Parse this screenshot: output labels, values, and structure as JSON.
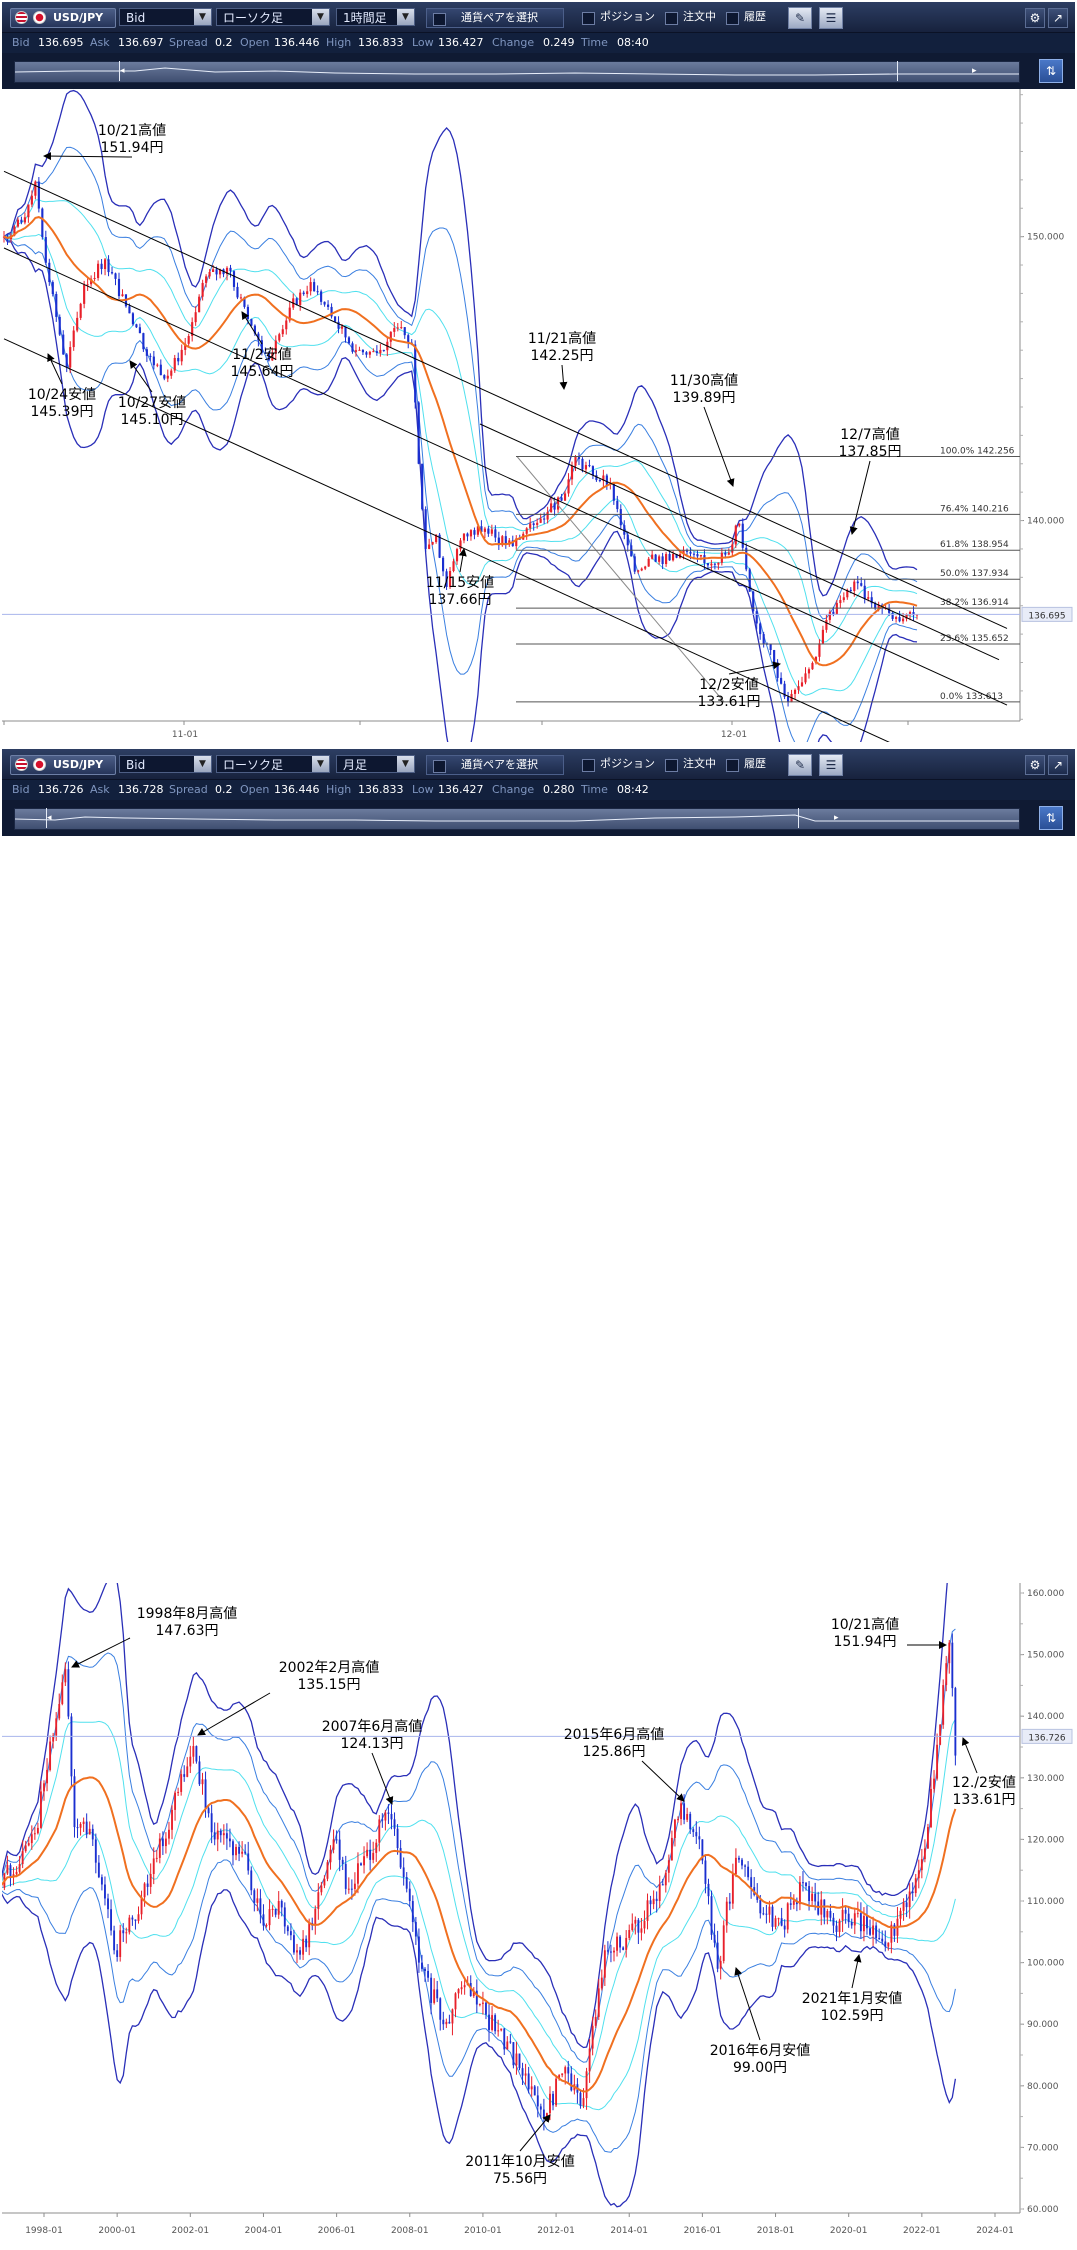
{
  "top": {
    "toolbar": {
      "pair": "USD/JPY",
      "side": "Bid",
      "chart_type": "ローソク足",
      "timeframe": "1時間足",
      "select_pair": "通貨ペアを選択",
      "positions": "ポジション",
      "orders": "注文中",
      "history": "履歴"
    },
    "quote": {
      "bid_label": "Bid",
      "bid": "136.695",
      "ask_label": "Ask",
      "ask": "136.697",
      "spread_label": "Spread",
      "spread": "0.2",
      "open_label": "Open",
      "open": "136.446",
      "high_label": "High",
      "high": "136.833",
      "low_label": "Low",
      "low": "136.427",
      "change_label": "Change",
      "change": "0.249",
      "time_label": "Time",
      "time": "08:40"
    }
  },
  "bottom": {
    "toolbar": {
      "pair": "USD/JPY",
      "side": "Bid",
      "chart_type": "ローソク足",
      "timeframe": "月足",
      "select_pair": "通貨ペアを選択",
      "positions": "ポジション",
      "orders": "注文中",
      "history": "履歴"
    },
    "quote": {
      "bid_label": "Bid",
      "bid": "136.726",
      "ask_label": "Ask",
      "ask": "136.728",
      "spread_label": "Spread",
      "spread": "0.2",
      "open_label": "Open",
      "open": "136.446",
      "high_label": "High",
      "high": "136.833",
      "low_label": "Low",
      "low": "136.427",
      "change_label": "Change",
      "change": "0.280",
      "time_label": "Time",
      "time": "08:42"
    }
  },
  "colors": {
    "candle_up": "#e8202a",
    "candle_down": "#1a2fd0",
    "ma": "#f07020",
    "band_outer": "#2a2fb8",
    "band_mid": "#3a7fe0",
    "band_inner": "#50e0ee",
    "current_line": "#a8b4ec",
    "fib": "#555555",
    "channel": "#000000",
    "axis_text": "#555555"
  },
  "chart_data": [
    {
      "type": "candlestick",
      "timeframe": "1時間足",
      "y_ticks": [
        150,
        140
      ],
      "y_tick_labels": [
        "150.000",
        "140.000"
      ],
      "x_tick_labels": [
        "11-01",
        "12-01"
      ],
      "current_price": 136.695,
      "current_price_label": "136.695",
      "ylim": [
        132.2,
        155.2
      ],
      "price_path": [
        [
          0,
          150.0
        ],
        [
          5,
          150.5
        ],
        [
          9,
          151.94
        ],
        [
          13,
          148.4
        ],
        [
          18,
          145.39
        ],
        [
          23,
          148.3
        ],
        [
          29,
          149.2
        ],
        [
          36,
          147.3
        ],
        [
          41,
          145.8
        ],
        [
          47,
          145.1
        ],
        [
          53,
          146.5
        ],
        [
          58,
          148.6
        ],
        [
          64,
          148.9
        ],
        [
          70,
          147.1
        ],
        [
          76,
          145.64
        ],
        [
          82,
          147.5
        ],
        [
          88,
          148.4
        ],
        [
          95,
          147.0
        ],
        [
          101,
          146.0
        ],
        [
          107,
          145.9
        ],
        [
          113,
          146.8
        ],
        [
          117,
          146.2
        ],
        [
          119,
          142.0
        ],
        [
          121,
          139.0
        ],
        [
          124,
          139.5
        ],
        [
          127,
          137.66
        ],
        [
          131,
          139.3
        ],
        [
          136,
          139.8
        ],
        [
          141,
          139.4
        ],
        [
          146,
          139.1
        ],
        [
          151,
          139.9
        ],
        [
          156,
          140.3
        ],
        [
          160,
          140.7
        ],
        [
          164,
          142.25
        ],
        [
          169,
          141.6
        ],
        [
          174,
          141.3
        ],
        [
          178,
          139.5
        ],
        [
          181,
          138.2
        ],
        [
          186,
          138.8
        ],
        [
          191,
          138.6
        ],
        [
          196,
          138.9
        ],
        [
          201,
          138.5
        ],
        [
          207,
          138.8
        ],
        [
          211,
          139.89
        ],
        [
          214,
          137.5
        ],
        [
          217,
          136.0
        ],
        [
          221,
          135.0
        ],
        [
          225,
          133.61
        ],
        [
          229,
          134.3
        ],
        [
          233,
          135.2
        ],
        [
          236,
          136.5
        ],
        [
          240,
          137.2
        ],
        [
          244,
          137.85
        ],
        [
          248,
          137.3
        ],
        [
          252,
          136.9
        ],
        [
          256,
          136.6
        ],
        [
          259,
          136.7
        ],
        [
          262,
          136.695
        ]
      ],
      "bollinger_sigmas": [
        1,
        2,
        3
      ],
      "fibonacci": [
        {
          "label": "100.0%",
          "value": "142.256"
        },
        {
          "label": "76.4%",
          "value": "140.216"
        },
        {
          "label": "61.8%",
          "value": "138.954"
        },
        {
          "label": "50.0%",
          "value": "137.934"
        },
        {
          "label": "38.2%",
          "value": "136.914"
        },
        {
          "label": "23.6%",
          "value": "135.652"
        },
        {
          "label": "0.0%",
          "value": "133.613"
        }
      ],
      "channels": [
        {
          "i1": 0,
          "p1": 152.3,
          "i2": 262,
          "p2": 137.3
        },
        {
          "i1": 0,
          "p1": 149.6,
          "i2": 262,
          "p2": 134.6
        },
        {
          "i1": 0,
          "p1": 146.4,
          "i2": 262,
          "p2": 131.4
        }
      ],
      "annotations": [
        {
          "text": [
            "10/21高値",
            "151.94円"
          ],
          "i": 9,
          "p": 151.94
        },
        {
          "text": [
            "10/24安値",
            "145.39円"
          ],
          "i": 18,
          "p": 145.39
        },
        {
          "text": [
            "10/27安値",
            "145.10円"
          ],
          "i": 47,
          "p": 145.1
        },
        {
          "text": [
            "11/2安値",
            "145.64円"
          ],
          "i": 76,
          "p": 145.64
        },
        {
          "text": [
            "11/15安値",
            "137.66円"
          ],
          "i": 127,
          "p": 137.66
        },
        {
          "text": [
            "11/21高値",
            "142.25円"
          ],
          "i": 164,
          "p": 142.25
        },
        {
          "text": [
            "11/30高値",
            "139.89円"
          ],
          "i": 211,
          "p": 139.89
        },
        {
          "text": [
            "12/2安値",
            "133.61円"
          ],
          "i": 225,
          "p": 133.61
        },
        {
          "text": [
            "12/7高値",
            "137.85円"
          ],
          "i": 244,
          "p": 137.85
        }
      ]
    },
    {
      "type": "candlestick",
      "timeframe": "月足",
      "y_ticks": [
        160,
        150,
        140,
        130,
        120,
        110,
        100,
        90,
        80,
        70,
        60
      ],
      "y_tick_labels": [
        "160.000",
        "150.000",
        "140.000",
        "130.000",
        "120.000",
        "110.000",
        "100.000",
        "90.000",
        "80.000",
        "70.000",
        "60.000"
      ],
      "x_tick_labels": [
        "1998-01",
        "2000-01",
        "2002-01",
        "2004-01",
        "2006-01",
        "2008-01",
        "2010-01",
        "2012-01",
        "2014-01",
        "2016-01",
        "2018-01",
        "2020-01",
        "2022-01",
        "2024-01"
      ],
      "x_start": "1996-10",
      "x_end": "2024-06",
      "current_price": 136.726,
      "current_price_label": "136.726",
      "ylim": [
        60,
        160
      ],
      "price_path": [
        [
          "1996-10",
          113
        ],
        [
          "1997-05",
          116
        ],
        [
          "1997-10",
          121
        ],
        [
          "1998-08",
          147.63
        ],
        [
          "1998-11",
          122
        ],
        [
          "1999-05",
          120
        ],
        [
          "1999-12",
          102
        ],
        [
          "2000-06",
          107
        ],
        [
          "2001-02",
          117
        ],
        [
          "2002-02",
          135.15
        ],
        [
          "2002-09",
          120
        ],
        [
          "2003-06",
          118
        ],
        [
          "2004-01",
          106
        ],
        [
          "2004-06",
          110
        ],
        [
          "2004-12",
          102
        ],
        [
          "2005-05",
          106
        ],
        [
          "2005-12",
          120
        ],
        [
          "2006-05",
          112
        ],
        [
          "2007-06",
          124.13
        ],
        [
          "2007-12",
          112
        ],
        [
          "2008-04",
          100
        ],
        [
          "2008-12",
          90
        ],
        [
          "2009-06",
          96
        ],
        [
          "2010-06",
          89
        ],
        [
          "2011-03",
          82
        ],
        [
          "2011-10",
          75.56
        ],
        [
          "2012-03",
          82
        ],
        [
          "2012-10",
          78
        ],
        [
          "2013-05",
          102
        ],
        [
          "2013-12",
          104
        ],
        [
          "2014-10",
          110
        ],
        [
          "2015-06",
          125.86
        ],
        [
          "2015-12",
          120
        ],
        [
          "2016-06",
          99.0
        ],
        [
          "2016-12",
          117
        ],
        [
          "2017-06",
          111
        ],
        [
          "2018-03",
          106
        ],
        [
          "2018-10",
          113
        ],
        [
          "2019-08",
          106
        ],
        [
          "2020-03",
          108
        ],
        [
          "2021-01",
          102.59
        ],
        [
          "2021-12",
          115
        ],
        [
          "2022-03",
          122
        ],
        [
          "2022-10",
          151.94
        ],
        [
          "2022-12",
          133.61
        ]
      ],
      "bollinger_sigmas": [
        1,
        2,
        3
      ],
      "annotations": [
        {
          "text": [
            "1998年8月高値",
            "147.63円"
          ],
          "d": "1998-08",
          "p": 147.63
        },
        {
          "text": [
            "2002年2月高値",
            "135.15円"
          ],
          "d": "2002-02",
          "p": 135.15
        },
        {
          "text": [
            "2007年6月高値",
            "124.13円"
          ],
          "d": "2007-06",
          "p": 124.13
        },
        {
          "text": [
            "2011年10月安値",
            "75.56円"
          ],
          "d": "2011-10",
          "p": 75.56
        },
        {
          "text": [
            "2015年6月高値",
            "125.86円"
          ],
          "d": "2015-06",
          "p": 125.86
        },
        {
          "text": [
            "2016年6月安値",
            "99.00円"
          ],
          "d": "2016-06",
          "p": 99.0
        },
        {
          "text": [
            "2021年1月安値",
            "102.59円"
          ],
          "d": "2021-01",
          "p": 102.59
        },
        {
          "text": [
            "10/21高値",
            "151.94円"
          ],
          "d": "2022-10",
          "p": 151.94
        },
        {
          "text": [
            "12./2安値",
            "133.61円"
          ],
          "d": "2022-12",
          "p": 133.61
        }
      ]
    }
  ]
}
